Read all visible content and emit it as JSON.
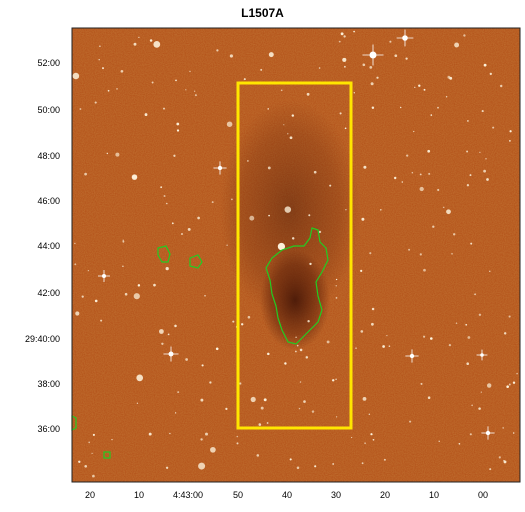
{
  "title": "L1507A",
  "y_ticks": [
    "52:00",
    "50:00",
    "48:00",
    "46:00",
    "44:00",
    "42:00",
    "29:40:00",
    "38:00",
    "36:00"
  ],
  "x_ticks": [
    "20",
    "10",
    "4:43:00",
    "50",
    "40",
    "30",
    "20",
    "10",
    "00"
  ],
  "colors": {
    "background_map": "#b0501a",
    "box": "#ffe600",
    "contour": "#22cc22"
  },
  "annotations": {
    "box_shape": "rectangle",
    "contour_shape": "irregular closed contour"
  }
}
